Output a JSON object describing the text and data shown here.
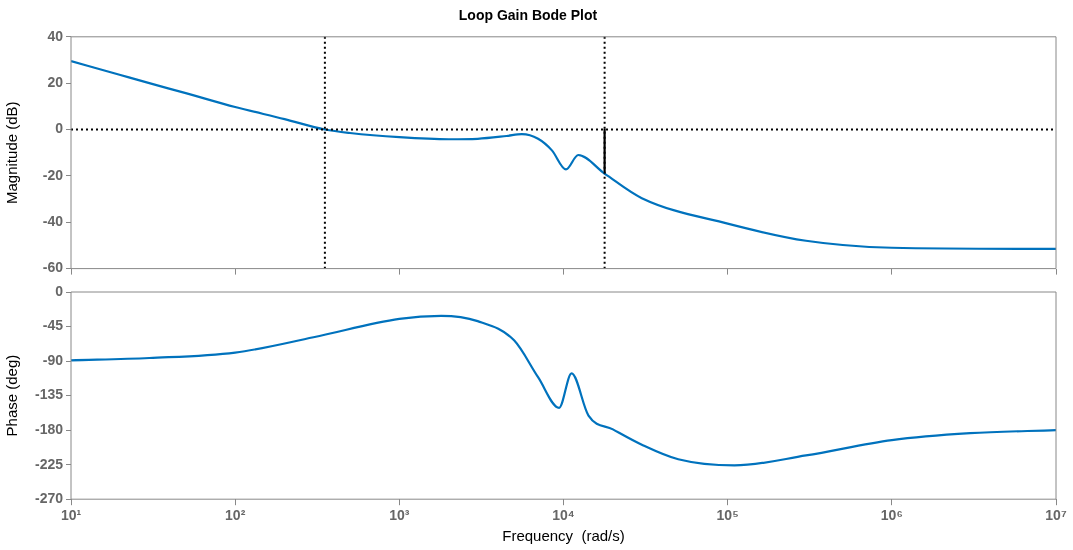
{
  "chart_data": [
    {
      "type": "line",
      "title": "Loop Gain Bode Plot",
      "ylabel": "Magnitude (dB)",
      "log": "x",
      "grid": false,
      "legend": false,
      "tick_labels": "y",
      "xlim": [
        10,
        10000000
      ],
      "xticks": [
        {
          "value": 10,
          "label": null
        },
        {
          "value": 100,
          "label": null
        },
        {
          "value": 1000,
          "label": null
        },
        {
          "value": 10000,
          "label": null
        },
        {
          "value": 100000,
          "label": null
        },
        {
          "value": 1000000,
          "label": null
        },
        {
          "value": 10000000,
          "label": null
        }
      ],
      "ylim": [
        -60,
        40
      ],
      "yticks": [
        -60,
        -40,
        -20,
        0,
        20,
        40
      ],
      "series": [
        {
          "color": "#0072bd",
          "x": [
            10,
            20,
            30,
            50,
            100,
            200,
            352,
            500,
            1000,
            2000,
            3000,
            4500,
            5580,
            7000,
            8500,
            10350,
            12300,
            17800,
            30000,
            100000,
            300000,
            1000000,
            10000000
          ],
          "values": [
            29.5,
            23.5,
            20,
            15.7,
            9.7,
            4.5,
            0,
            -1.5,
            -3.3,
            -4.2,
            -4,
            -2.8,
            -2,
            -4,
            -9,
            -17.2,
            -11,
            -19,
            -29.6,
            -40.6,
            -48,
            -51,
            -51.5
          ]
        },
        {
          "color": "#000000",
          "x": [
            17800,
            17800
          ],
          "values": [
            0,
            -19
          ]
        }
      ],
      "ref_lines": [
        {
          "axis": "y",
          "value": 0,
          "color": "#000000",
          "line_style": "dotted"
        },
        {
          "axis": "x",
          "value": 352,
          "color": "#000000",
          "line_style": "dotted"
        },
        {
          "axis": "x",
          "value": 17800,
          "color": "#000000",
          "line_style": "dotted"
        }
      ]
    },
    {
      "type": "line",
      "xlabel": "Frequency  (rad/s)",
      "ylabel": "Phase (deg)",
      "log": "x",
      "grid": false,
      "legend": false,
      "xlim": [
        10,
        10000000
      ],
      "xticks": [
        {
          "value": 10,
          "label": "10¹"
        },
        {
          "value": 100,
          "label": "10²"
        },
        {
          "value": 1000,
          "label": "10³"
        },
        {
          "value": 10000,
          "label": "10⁴"
        },
        {
          "value": 100000,
          "label": "10⁵"
        },
        {
          "value": 1000000,
          "label": "10⁶"
        },
        {
          "value": 10000000,
          "label": "10⁷"
        }
      ],
      "ylim": [
        -270,
        0
      ],
      "yticks": [
        -270,
        -225,
        -180,
        -135,
        -90,
        -45,
        0
      ],
      "series": [
        {
          "color": "#0072bd",
          "x": [
            10,
            30,
            100,
            300,
            1000,
            1800,
            3000,
            5000,
            7000,
            9400,
            11200,
            14200,
            20000,
            30000,
            50000,
            110000,
            300000,
            1000000,
            3000000,
            10000000
          ],
          "values": [
            -89,
            -86,
            -79,
            -59,
            -35,
            -31,
            -38,
            -63,
            -111,
            -151,
            -106,
            -161,
            -179,
            -199,
            -218,
            -226,
            -213,
            -193,
            -184,
            -180
          ]
        }
      ]
    }
  ]
}
